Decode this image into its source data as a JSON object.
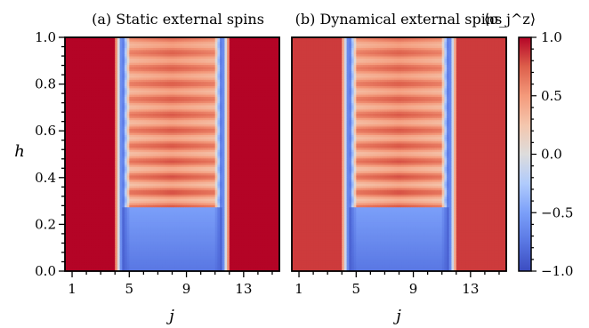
{
  "chart_data": {
    "type": "heatmap",
    "quantity": "⟨σ_j^z⟩",
    "colorbar": {
      "label": "⟨σ_j^z⟩",
      "range": [
        -1.0,
        1.0
      ],
      "ticks": [
        "1.0",
        "0.5",
        "0.0",
        "−0.5",
        "−1.0"
      ],
      "tick_values": [
        1.0,
        0.5,
        0.0,
        -0.5,
        -1.0
      ],
      "colormap": "coolwarm",
      "colors": {
        "low": "#3b4cc0",
        "mid": "#dddddd",
        "high": "#b40426"
      }
    },
    "panels": [
      {
        "title": "(a) Static external spins",
        "xlabel": "j",
        "ylabel": "h",
        "x_ticks": [
          "1",
          "5",
          "9",
          "13"
        ],
        "x_tick_values": [
          1,
          5,
          9,
          13
        ],
        "y_ticks": [
          "1.0",
          "0.8",
          "0.6",
          "0.4",
          "0.2",
          "0.0"
        ],
        "y_tick_values": [
          1.0,
          0.8,
          0.6,
          0.4,
          0.2,
          0.0
        ],
        "xlim": [
          0.5,
          15.5
        ],
        "ylim": [
          0.0,
          1.0
        ],
        "regions": {
          "outer_left_sites": [
            1,
            4
          ],
          "boundary_left": 4.5,
          "inner_sites": [
            5,
            11
          ],
          "boundary_right": 11.5,
          "outer_right_sites": [
            12,
            15
          ],
          "outer_value": 1.0,
          "inner_low_h_value": -0.65,
          "transition_h": 0.27,
          "inner_high_h_value": 0.45,
          "edge_dip_value": -0.9,
          "oscillation_stripes": 22
        }
      },
      {
        "title": "(b) Dynamical external spins",
        "xlabel": "j",
        "ylabel": "",
        "x_ticks": [
          "1",
          "5",
          "9",
          "13"
        ],
        "x_tick_values": [
          1,
          5,
          9,
          13
        ],
        "y_ticks": [],
        "xlim": [
          0.5,
          15.5
        ],
        "ylim": [
          0.0,
          1.0
        ],
        "regions": {
          "outer_left_sites": [
            1,
            4
          ],
          "boundary_left": 4.5,
          "inner_sites": [
            5,
            11
          ],
          "boundary_right": 11.5,
          "outer_right_sites": [
            12,
            15
          ],
          "outer_value": 0.85,
          "inner_low_h_value": -0.65,
          "transition_h": 0.27,
          "inner_high_h_value": 0.45,
          "edge_dip_value": -0.9,
          "oscillation_stripes": 22
        }
      }
    ]
  }
}
